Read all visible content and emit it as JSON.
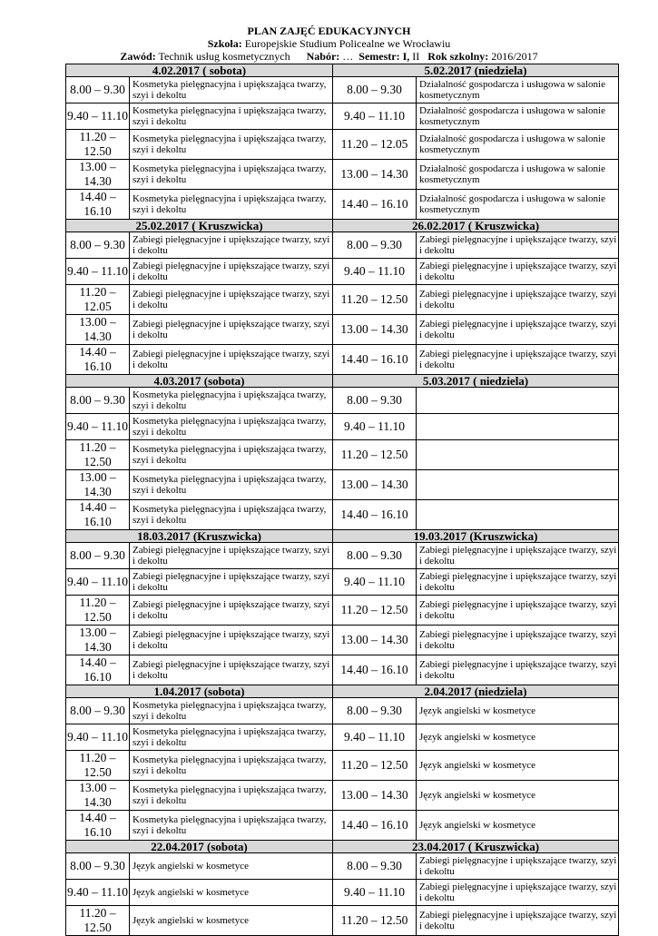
{
  "header": {
    "title": "PLAN ZAJĘĆ EDUKACYJNYCH",
    "school_label": "Szkoła:",
    "school": "Europejskie Studium Policealne we Wrocławiu",
    "profession_label": "Zawód:",
    "profession": "Technik usług kosmetycznych",
    "intake_label": "Nabór:",
    "intake": "…",
    "semester_label": "Semestr: I,",
    "semester": "II",
    "year_label": "Rok szkolny:",
    "year": "2016/2017"
  },
  "blocks": [
    {
      "left_day": "4.02.2017 ( sobota)",
      "right_day": "5.02.2017 (niedziela)",
      "rows": [
        [
          "8.00 – 9.30",
          "Kosmetyka pielęgnacyjna i upiększająca twarzy, szyi i dekoltu",
          "8.00 – 9.30",
          "Działalność gospodarcza i usługowa w salonie kosmetycznym"
        ],
        [
          "9.40 – 11.10",
          "Kosmetyka pielęgnacyjna i upiększająca twarzy, szyi i dekoltu",
          "9.40 – 11.10",
          "Działalność gospodarcza i usługowa w salonie kosmetycznym"
        ],
        [
          "11.20 – 12.50",
          "Kosmetyka pielęgnacyjna i upiększająca twarzy, szyi i dekoltu",
          "11.20 – 12.05",
          "Działalność gospodarcza i usługowa w salonie kosmetycznym"
        ],
        [
          "13.00 – 14.30",
          "Kosmetyka pielęgnacyjna i upiększająca twarzy, szyi i dekoltu",
          "13.00 – 14.30",
          "Działalność gospodarcza i usługowa w salonie kosmetycznym"
        ],
        [
          "14.40 – 16.10",
          "Kosmetyka pielęgnacyjna i upiększająca twarzy, szyi i dekoltu",
          "14.40 – 16.10",
          "Działalność gospodarcza i usługowa w salonie kosmetycznym"
        ]
      ]
    },
    {
      "left_day": "25.02.2017 ( Kruszwicka)",
      "right_day": "26.02.2017 ( Kruszwicka)",
      "rows": [
        [
          "8.00 – 9.30",
          "Zabiegi pielęgnacyjne i upiększające twarzy, szyi i dekoltu",
          "8.00 – 9.30",
          "Zabiegi pielęgnacyjne i upiększające twarzy, szyi i dekoltu"
        ],
        [
          "9.40 – 11.10",
          "Zabiegi pielęgnacyjne i upiększające twarzy, szyi i dekoltu",
          "9.40 – 11.10",
          "Zabiegi pielęgnacyjne i upiększające twarzy, szyi i dekoltu"
        ],
        [
          "11.20 – 12.05",
          "Zabiegi pielęgnacyjne i upiększające twarzy, szyi i dekoltu",
          "11.20 – 12.50",
          "Zabiegi pielęgnacyjne i upiększające twarzy, szyi i dekoltu"
        ],
        [
          "13.00 – 14.30",
          "Zabiegi pielęgnacyjne i upiększające twarzy, szyi i dekoltu",
          "13.00 – 14.30",
          "Zabiegi pielęgnacyjne i upiększające twarzy, szyi i dekoltu"
        ],
        [
          "14.40 – 16.10",
          "Zabiegi pielęgnacyjne i upiększające twarzy, szyi i dekoltu",
          "14.40 – 16.10",
          "Zabiegi pielęgnacyjne i upiększające twarzy, szyi i dekoltu"
        ]
      ]
    },
    {
      "left_day": "4.03.2017 (sobota)",
      "right_day": "5.03.2017 ( niedziela)",
      "rows": [
        [
          "8.00 – 9.30",
          "Kosmetyka pielęgnacyjna i upiększająca twarzy, szyi i dekoltu",
          "8.00 – 9.30",
          ""
        ],
        [
          "9.40 – 11.10",
          "Kosmetyka pielęgnacyjna i upiększająca twarzy, szyi i dekoltu",
          "9.40 – 11.10",
          ""
        ],
        [
          "11.20 – 12.50",
          "Kosmetyka pielęgnacyjna i upiększająca twarzy, szyi i dekoltu",
          "11.20 – 12.50",
          ""
        ],
        [
          "13.00 – 14.30",
          "Kosmetyka pielęgnacyjna i upiększająca twarzy, szyi i dekoltu",
          "13.00 – 14.30",
          ""
        ],
        [
          "14.40 – 16.10",
          "Kosmetyka pielęgnacyjna i upiększająca twarzy, szyi i dekoltu",
          "14.40 – 16.10",
          ""
        ]
      ]
    },
    {
      "left_day": "18.03.2017 (Kruszwicka)",
      "right_day": "19.03.2017 (Kruszwicka)",
      "rows": [
        [
          "8.00 – 9.30",
          "Zabiegi pielęgnacyjne i upiększające twarzy, szyi i dekoltu",
          "8.00 – 9.30",
          "Zabiegi pielęgnacyjne i upiększające twarzy, szyi i dekoltu"
        ],
        [
          "9.40 – 11.10",
          "Zabiegi pielęgnacyjne i upiększające twarzy, szyi i dekoltu",
          "9.40 – 11.10",
          "Zabiegi pielęgnacyjne i upiększające twarzy, szyi i dekoltu"
        ],
        [
          "11.20 – 12.50",
          "Zabiegi pielęgnacyjne i upiększające twarzy, szyi i dekoltu",
          "11.20 – 12.50",
          "Zabiegi pielęgnacyjne i upiększające twarzy, szyi i dekoltu"
        ],
        [
          "13.00 – 14.30",
          "Zabiegi pielęgnacyjne i upiększające twarzy, szyi i dekoltu",
          "13.00 – 14.30",
          "Zabiegi pielęgnacyjne i upiększające twarzy, szyi i dekoltu"
        ],
        [
          "14.40 – 16.10",
          "Zabiegi pielęgnacyjne i upiększające twarzy, szyi i dekoltu",
          "14.40 – 16.10",
          "Zabiegi pielęgnacyjne i upiększające twarzy, szyi i dekoltu"
        ]
      ]
    },
    {
      "left_day": "1.04.2017 (sobota)",
      "right_day": "2.04.2017 (niedziela)",
      "rows": [
        [
          "8.00 – 9.30",
          "Kosmetyka pielęgnacyjna i upiększająca twarzy, szyi i dekoltu",
          "8.00 – 9.30",
          "Język angielski w kosmetyce"
        ],
        [
          "9.40 – 11.10",
          "Kosmetyka pielęgnacyjna i upiększająca twarzy, szyi i dekoltu",
          "9.40 – 11.10",
          "Język angielski w kosmetyce"
        ],
        [
          "11.20 – 12.50",
          "Kosmetyka pielęgnacyjna i upiększająca twarzy, szyi i dekoltu",
          "11.20 – 12.50",
          "Język angielski w kosmetyce"
        ],
        [
          "13.00 – 14.30",
          "Kosmetyka pielęgnacyjna i upiększająca twarzy, szyi i dekoltu",
          "13.00 – 14.30",
          "Język angielski w kosmetyce"
        ],
        [
          "14.40 – 16.10",
          "Kosmetyka pielęgnacyjna i upiększająca twarzy, szyi i dekoltu",
          "14.40 – 16.10",
          "Język angielski w kosmetyce"
        ]
      ]
    },
    {
      "left_day": "22.04.2017 (sobota)",
      "right_day": "23.04.2017 ( Kruszwicka)",
      "rows": [
        [
          "8.00 – 9.30",
          "Język angielski w kosmetyce",
          "8.00 – 9.30",
          "Zabiegi pielęgnacyjne i upiększające twarzy, szyi i dekoltu"
        ],
        [
          "9.40 – 11.10",
          "Język angielski w kosmetyce",
          "9.40 – 11.10",
          "Zabiegi pielęgnacyjne i upiększające twarzy, szyi i dekoltu"
        ],
        [
          "11.20 – 12.50",
          "Język angielski w kosmetyce",
          "11.20 – 12.50",
          "Zabiegi pielęgnacyjne i upiększające twarzy, szyi i dekoltu"
        ]
      ]
    }
  ]
}
